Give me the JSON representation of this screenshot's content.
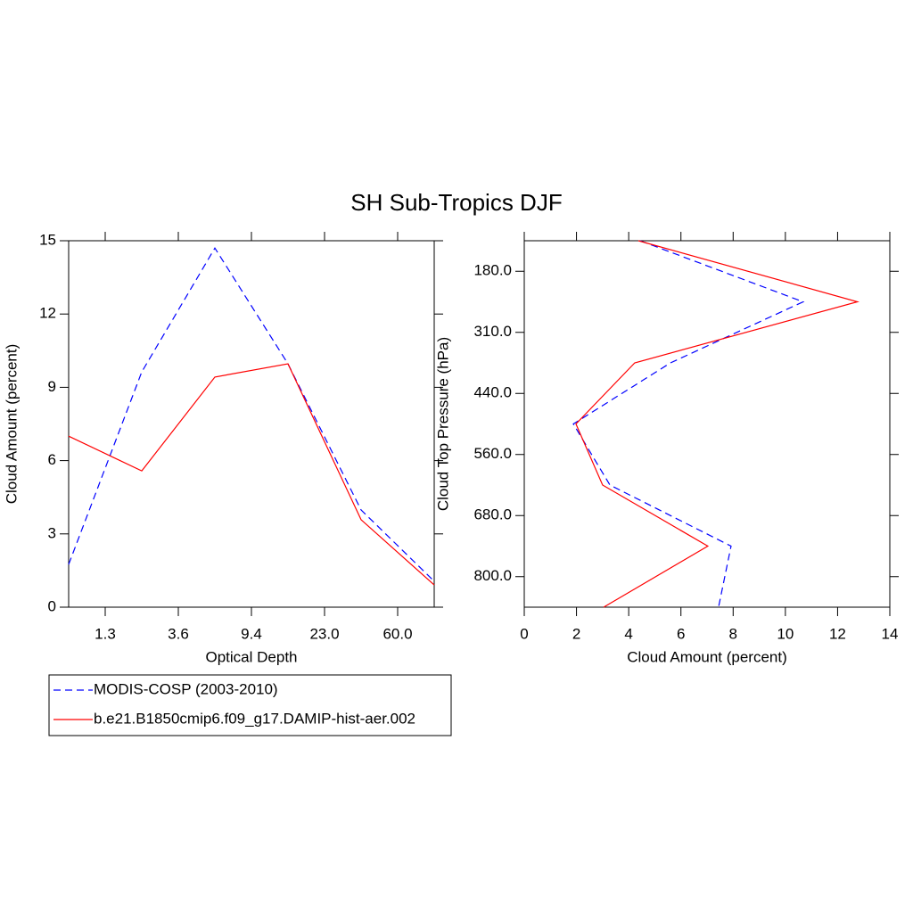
{
  "title": "SH Sub-Tropics DJF",
  "chart_data": [
    {
      "type": "line",
      "orientation": "vertical",
      "xlabel": "Optical Depth",
      "ylabel": "Cloud Amount (percent)",
      "x": [
        0,
        1,
        2,
        3,
        4,
        5
      ],
      "xlim": [
        0,
        5
      ],
      "xticks": [
        {
          "value": 0.5,
          "label": "1.3"
        },
        {
          "value": 1.5,
          "label": "3.6"
        },
        {
          "value": 2.5,
          "label": "9.4"
        },
        {
          "value": 3.5,
          "label": "23.0"
        },
        {
          "value": 4.5,
          "label": "60.0"
        }
      ],
      "ylim": [
        0,
        15
      ],
      "yticks": [
        0,
        3,
        6,
        9,
        12,
        15
      ],
      "series": [
        {
          "name": "MODIS-COSP (2003-2010)",
          "color": "#0000ff",
          "dash": true,
          "values": [
            1.75,
            9.63,
            14.7,
            9.96,
            3.98,
            1.06
          ]
        },
        {
          "name": "b.e21.B1850cmip6.f09_g17.DAMIP-hist-aer.002",
          "color": "#ff0000",
          "dash": false,
          "values": [
            7.0,
            5.58,
            9.42,
            9.96,
            3.58,
            0.91
          ]
        }
      ]
    },
    {
      "type": "line",
      "orientation": "horizontal",
      "xlabel": "Cloud Amount (percent)",
      "ylabel": "Cloud Top Pressure (hPa)",
      "y": [
        0,
        1,
        2,
        3,
        4,
        5,
        6
      ],
      "ylim": [
        6,
        0
      ],
      "yticks": [
        {
          "value": 0.5,
          "label": "180.0"
        },
        {
          "value": 1.5,
          "label": "310.0"
        },
        {
          "value": 2.5,
          "label": "440.0"
        },
        {
          "value": 3.5,
          "label": "560.0"
        },
        {
          "value": 4.5,
          "label": "680.0"
        },
        {
          "value": 5.5,
          "label": "800.0"
        }
      ],
      "xlim": [
        0,
        14
      ],
      "xticks": [
        0,
        2,
        4,
        6,
        8,
        10,
        12,
        14
      ],
      "series": [
        {
          "color": "#0000ff",
          "dash": true,
          "values": [
            4.44,
            10.68,
            5.6,
            1.88,
            3.28,
            7.92,
            7.44
          ]
        },
        {
          "color": "#ff0000",
          "dash": false,
          "values": [
            4.37,
            12.76,
            4.23,
            1.98,
            3.0,
            7.03,
            3.04
          ]
        }
      ]
    }
  ]
}
